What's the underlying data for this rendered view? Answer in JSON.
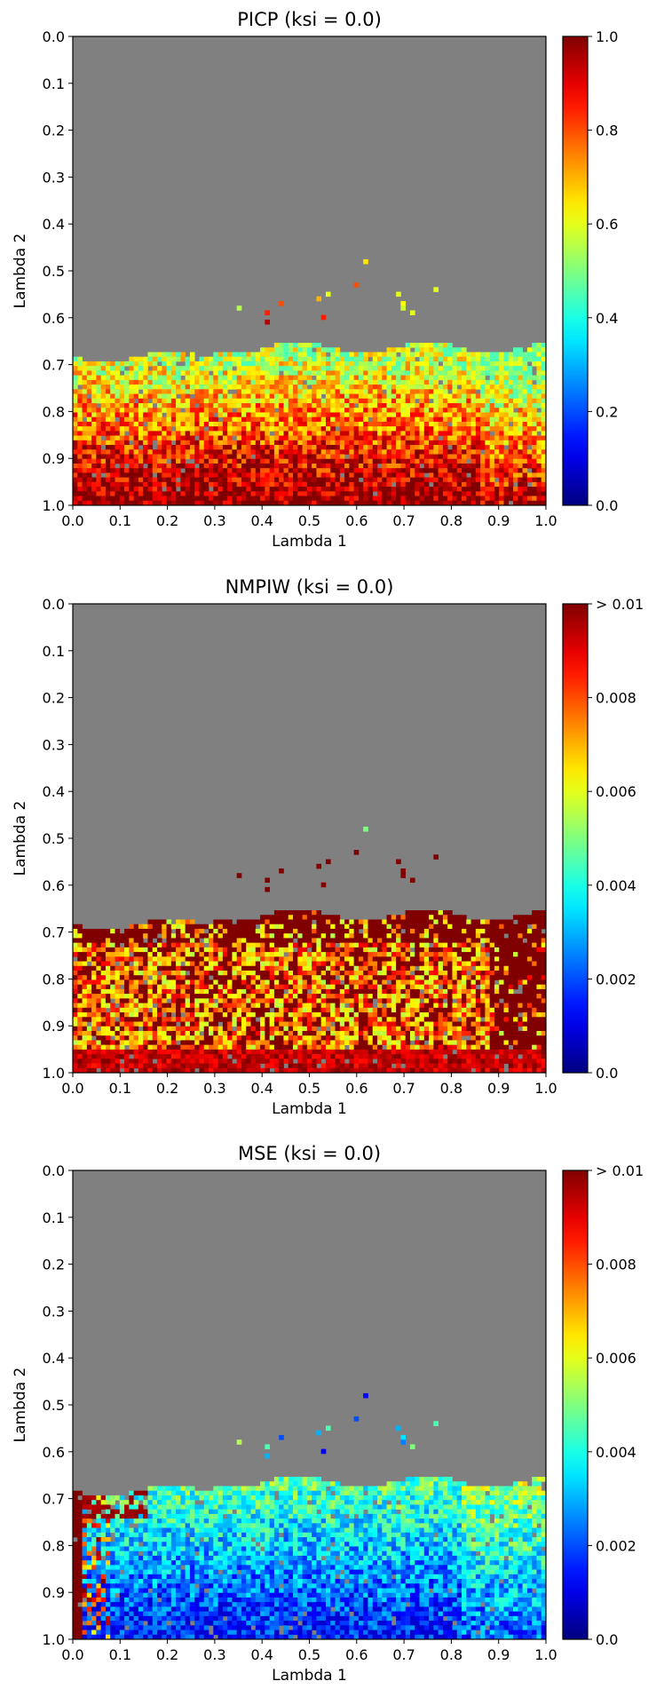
{
  "chart_data": [
    {
      "type": "heatmap",
      "title": "PICP  (ksi = 0.0)",
      "xlabel": "Lambda 1",
      "ylabel": "Lambda 2",
      "xlim": [
        0.0,
        1.0
      ],
      "ylim": [
        0.0,
        1.0
      ],
      "y_inverted": true,
      "xticks": [
        "0.0",
        "0.1",
        "0.2",
        "0.3",
        "0.4",
        "0.5",
        "0.6",
        "0.7",
        "0.8",
        "0.9",
        "1.0"
      ],
      "yticks": [
        "0.0",
        "0.1",
        "0.2",
        "0.3",
        "0.4",
        "0.5",
        "0.6",
        "0.7",
        "0.8",
        "0.9",
        "1.0"
      ],
      "colormap": "jet",
      "missing_color": "#808080",
      "colorbar": {
        "vmin": 0.0,
        "vmax": 1.0,
        "ticks": [
          "0.0",
          "0.2",
          "0.4",
          "0.6",
          "0.8",
          "1.0"
        ]
      },
      "metric": "picp",
      "grid": false
    },
    {
      "type": "heatmap",
      "title": "NMPIW  (ksi = 0.0)",
      "xlabel": "Lambda 1",
      "ylabel": "Lambda 2",
      "xlim": [
        0.0,
        1.0
      ],
      "ylim": [
        0.0,
        1.0
      ],
      "y_inverted": true,
      "xticks": [
        "0.0",
        "0.1",
        "0.2",
        "0.3",
        "0.4",
        "0.5",
        "0.6",
        "0.7",
        "0.8",
        "0.9",
        "1.0"
      ],
      "yticks": [
        "0.0",
        "0.1",
        "0.2",
        "0.3",
        "0.4",
        "0.5",
        "0.6",
        "0.7",
        "0.8",
        "0.9",
        "1.0"
      ],
      "colormap": "jet",
      "missing_color": "#808080",
      "colorbar": {
        "vmin": 0.0,
        "vmax": 0.01,
        "ticks": [
          "0.0",
          "0.002",
          "0.004",
          "0.006",
          "0.008",
          "> 0.01"
        ]
      },
      "metric": "nmpiw",
      "grid": false
    },
    {
      "type": "heatmap",
      "title": "MSE  (ksi = 0.0)",
      "xlabel": "Lambda 1",
      "ylabel": "Lambda 2",
      "xlim": [
        0.0,
        1.0
      ],
      "ylim": [
        0.0,
        1.0
      ],
      "y_inverted": true,
      "xticks": [
        "0.0",
        "0.1",
        "0.2",
        "0.3",
        "0.4",
        "0.5",
        "0.6",
        "0.7",
        "0.8",
        "0.9",
        "1.0"
      ],
      "yticks": [
        "0.0",
        "0.1",
        "0.2",
        "0.3",
        "0.4",
        "0.5",
        "0.6",
        "0.7",
        "0.8",
        "0.9",
        "1.0"
      ],
      "colormap": "jet",
      "missing_color": "#808080",
      "colorbar": {
        "vmin": 0.0,
        "vmax": 0.01,
        "ticks": [
          "0.0",
          "0.002",
          "0.004",
          "0.006",
          "0.008",
          "> 0.01"
        ]
      },
      "metric": "mse",
      "grid": false
    }
  ],
  "grid_resolution": 0.01,
  "scattered_cells": [
    {
      "lambda1": 0.35,
      "lambda2": 0.58
    },
    {
      "lambda1": 0.41,
      "lambda2": 0.59
    },
    {
      "lambda1": 0.41,
      "lambda2": 0.61
    },
    {
      "lambda1": 0.44,
      "lambda2": 0.57
    },
    {
      "lambda1": 0.52,
      "lambda2": 0.56
    },
    {
      "lambda1": 0.53,
      "lambda2": 0.6
    },
    {
      "lambda1": 0.54,
      "lambda2": 0.55
    },
    {
      "lambda1": 0.6,
      "lambda2": 0.53
    },
    {
      "lambda1": 0.62,
      "lambda2": 0.48
    },
    {
      "lambda1": 0.69,
      "lambda2": 0.55
    },
    {
      "lambda1": 0.7,
      "lambda2": 0.57
    },
    {
      "lambda1": 0.7,
      "lambda2": 0.58
    },
    {
      "lambda1": 0.72,
      "lambda2": 0.59
    },
    {
      "lambda1": 0.77,
      "lambda2": 0.54
    }
  ]
}
